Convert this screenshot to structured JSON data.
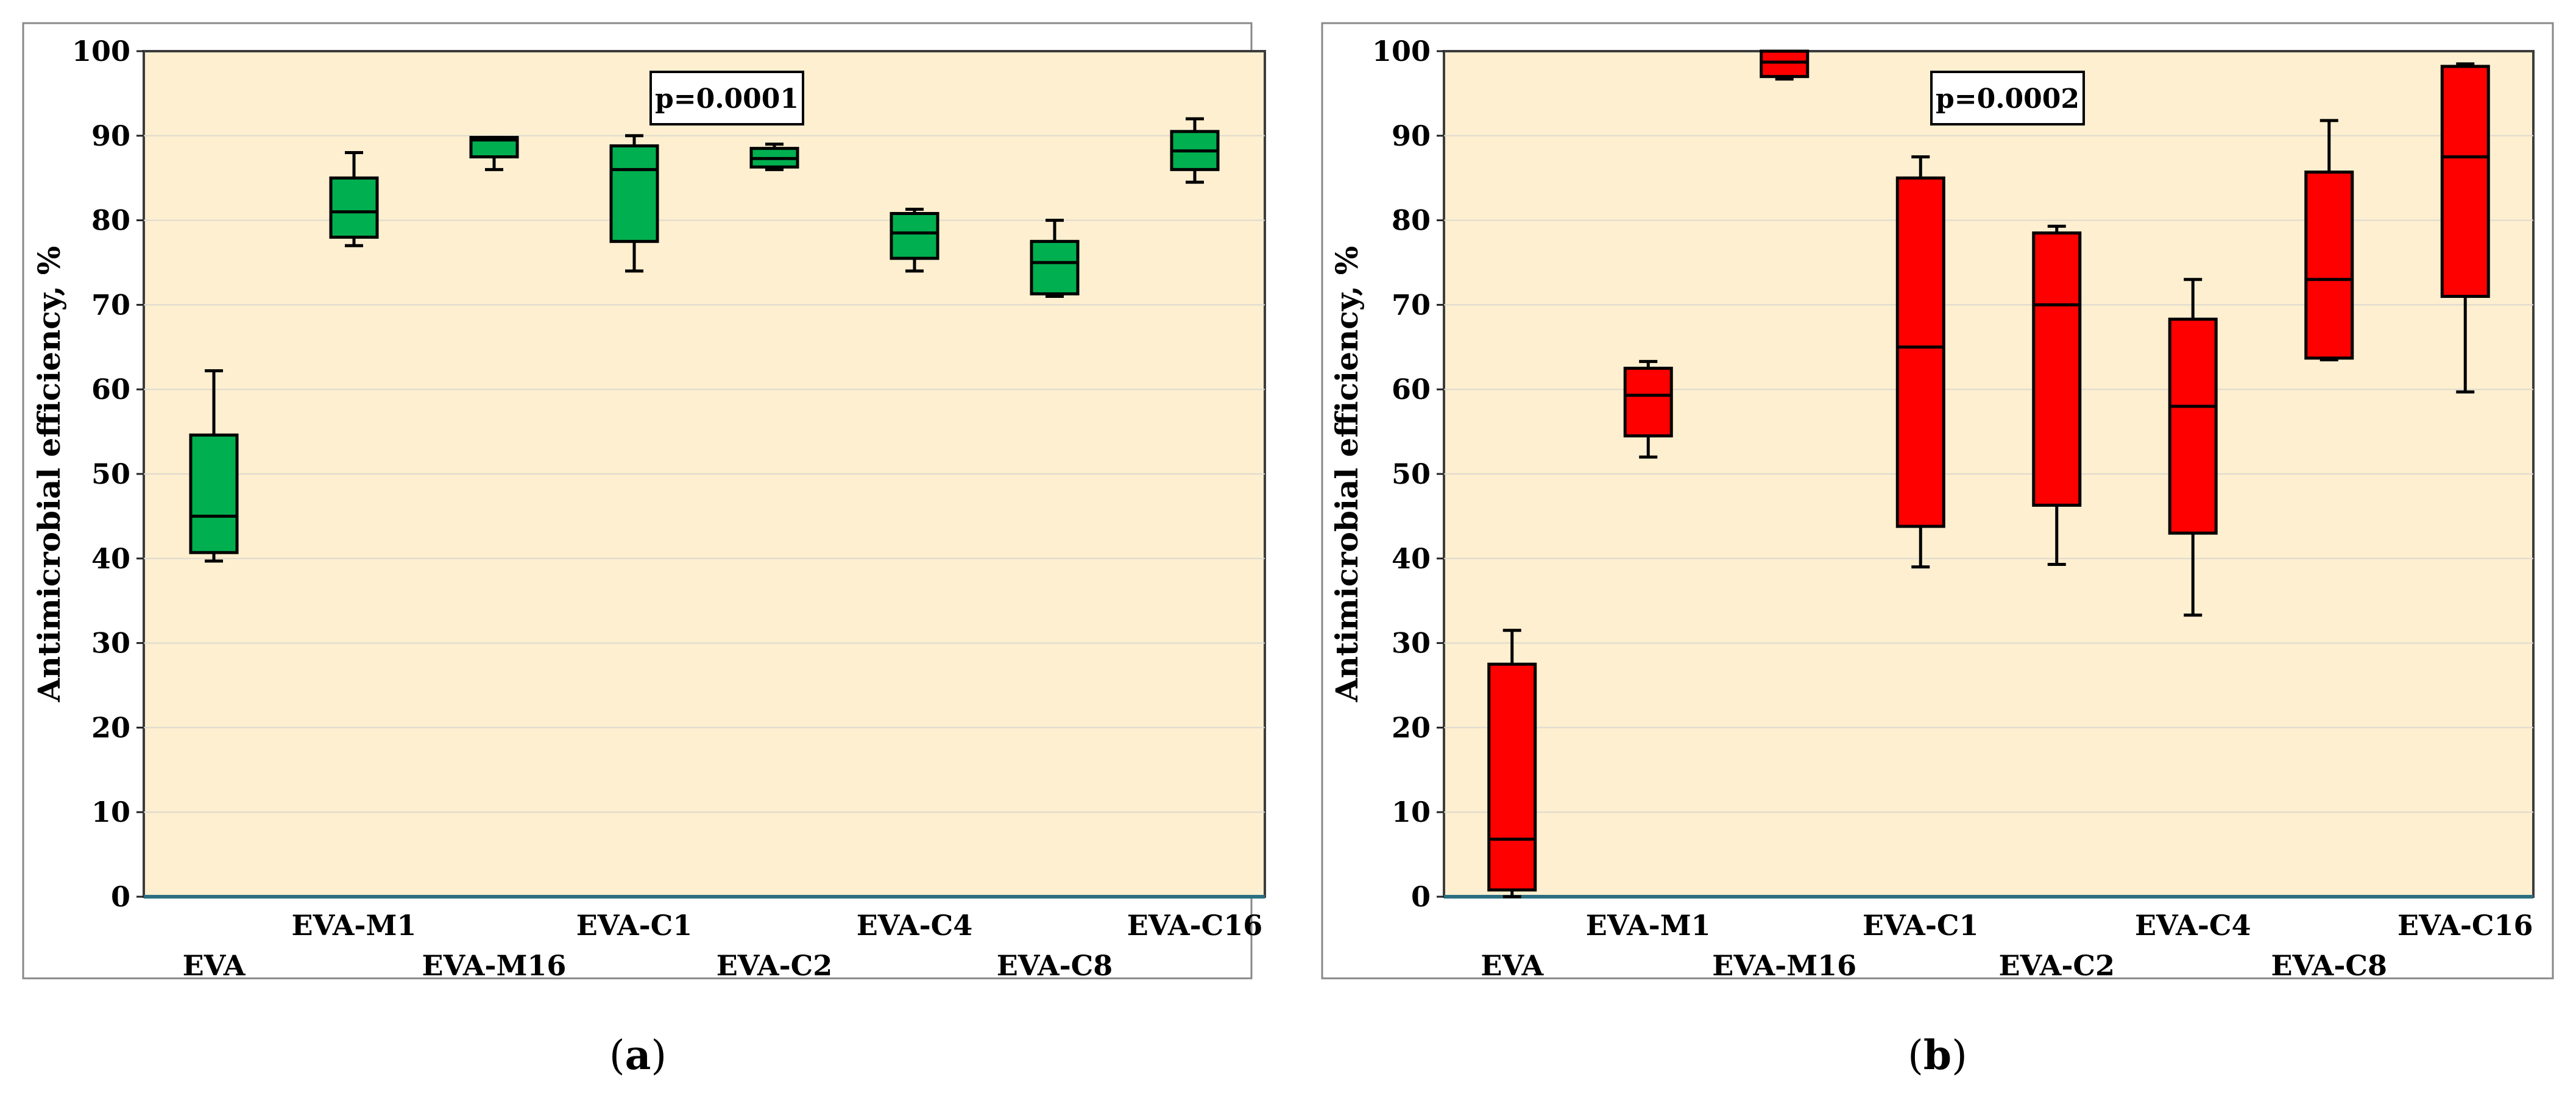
{
  "colors": {
    "plot_background": "#fdefcf",
    "gridline": "#ddd9cf",
    "axis": "#2a6f80",
    "panel_border": "#888888",
    "whisker": "#000000",
    "panel_a_fill": "#00b050",
    "panel_b_fill": "#ff0000"
  },
  "chart_data": [
    {
      "type": "box",
      "panel_label": "(a)",
      "panel_letter": "a",
      "ylabel": "Antimicrobial efficiency, %",
      "ylim": [
        0,
        100
      ],
      "yticks": [
        "0",
        "10",
        "20",
        "30",
        "40",
        "50",
        "60",
        "70",
        "80",
        "90",
        "100"
      ],
      "grid": true,
      "annotation": "p=0.0001",
      "fill_color": "#00b050",
      "categories": [
        "EVA",
        "EVA-M1",
        "EVA-M16",
        "EVA-C1",
        "EVA-C2",
        "EVA-C4",
        "EVA-C8",
        "EVA-C16"
      ],
      "boxes": [
        {
          "name": "EVA",
          "min": 39.7,
          "q1": 40.7,
          "median": 45.0,
          "q3": 54.6,
          "max": 62.2
        },
        {
          "name": "EVA-M1",
          "min": 77.0,
          "q1": 78.0,
          "median": 81.0,
          "q3": 85.0,
          "max": 88.0
        },
        {
          "name": "EVA-M16",
          "min": 86.0,
          "q1": 87.5,
          "median": 89.5,
          "q3": 89.8,
          "max": 89.8
        },
        {
          "name": "EVA-C1",
          "min": 74.0,
          "q1": 77.5,
          "median": 86.0,
          "q3": 88.8,
          "max": 90.0
        },
        {
          "name": "EVA-C2",
          "min": 86.0,
          "q1": 86.3,
          "median": 87.3,
          "q3": 88.5,
          "max": 89.0
        },
        {
          "name": "EVA-C4",
          "min": 74.0,
          "q1": 75.5,
          "median": 78.5,
          "q3": 80.8,
          "max": 81.3
        },
        {
          "name": "EVA-C8",
          "min": 71.0,
          "q1": 71.3,
          "median": 75.0,
          "q3": 77.5,
          "max": 80.0
        },
        {
          "name": "EVA-C16",
          "min": 84.5,
          "q1": 86.0,
          "median": 88.2,
          "q3": 90.5,
          "max": 92.0
        }
      ]
    },
    {
      "type": "box",
      "panel_label": "(b)",
      "panel_letter": "b",
      "ylabel": "Antimicrobial efficiency, %",
      "ylim": [
        0,
        100
      ],
      "yticks": [
        "0",
        "10",
        "20",
        "30",
        "40",
        "50",
        "60",
        "70",
        "80",
        "90",
        "100"
      ],
      "grid": true,
      "annotation": "p=0.0002",
      "fill_color": "#ff0000",
      "categories": [
        "EVA",
        "EVA-M1",
        "EVA-M16",
        "EVA-C1",
        "EVA-C2",
        "EVA-C4",
        "EVA-C8",
        "EVA-C16"
      ],
      "boxes": [
        {
          "name": "EVA",
          "min": 0.0,
          "q1": 0.8,
          "median": 6.8,
          "q3": 27.5,
          "max": 31.5
        },
        {
          "name": "EVA-M1",
          "min": 52.0,
          "q1": 54.5,
          "median": 59.3,
          "q3": 62.5,
          "max": 63.3
        },
        {
          "name": "EVA-M16",
          "min": 96.7,
          "q1": 97.0,
          "median": 98.7,
          "q3": 100.0,
          "max": 100.0
        },
        {
          "name": "EVA-C1",
          "min": 39.0,
          "q1": 43.8,
          "median": 65.0,
          "q3": 85.0,
          "max": 87.5
        },
        {
          "name": "EVA-C2",
          "min": 39.3,
          "q1": 46.3,
          "median": 70.0,
          "q3": 78.5,
          "max": 79.3
        },
        {
          "name": "EVA-C4",
          "min": 33.3,
          "q1": 43.0,
          "median": 58.0,
          "q3": 68.3,
          "max": 73.0
        },
        {
          "name": "EVA-C8",
          "min": 63.5,
          "q1": 63.7,
          "median": 73.0,
          "q3": 85.7,
          "max": 91.8
        },
        {
          "name": "EVA-C16",
          "min": 59.7,
          "q1": 71.0,
          "median": 87.5,
          "q3": 98.2,
          "max": 98.5
        }
      ]
    }
  ]
}
